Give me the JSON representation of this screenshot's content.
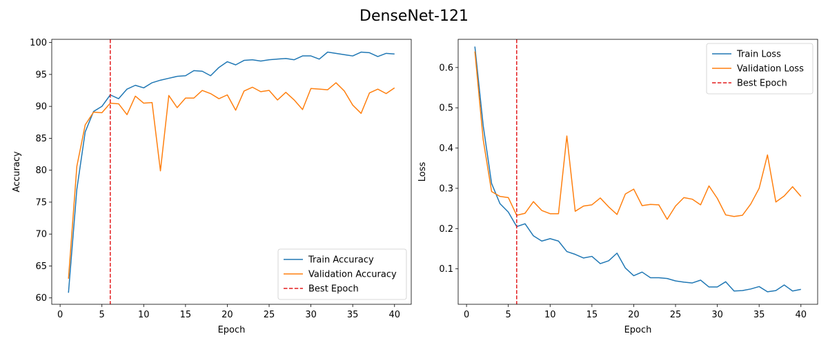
{
  "figure": {
    "title": "DenseNet-121"
  },
  "chart_data": [
    {
      "type": "line",
      "xlabel": "Epoch",
      "ylabel": "Accuracy",
      "xlim": [
        -1,
        42
      ],
      "ylim": [
        59.0,
        100.5
      ],
      "xticks": [
        0,
        5,
        10,
        15,
        20,
        25,
        30,
        35,
        40
      ],
      "yticks": [
        60,
        65,
        70,
        75,
        80,
        85,
        90,
        95,
        100
      ],
      "grid": false,
      "legend_position": "bottom-right",
      "x": [
        1,
        2,
        3,
        4,
        5,
        6,
        7,
        8,
        9,
        10,
        11,
        12,
        13,
        14,
        15,
        16,
        17,
        18,
        19,
        20,
        21,
        22,
        23,
        24,
        25,
        26,
        27,
        28,
        29,
        30,
        31,
        32,
        33,
        34,
        35,
        36,
        37,
        38,
        39,
        40
      ],
      "series": [
        {
          "name": "Train Accuracy",
          "color": "#1f77b4",
          "values": [
            60.8,
            77.0,
            86.0,
            89.2,
            90.0,
            91.8,
            91.2,
            92.7,
            93.3,
            92.9,
            93.7,
            94.1,
            94.4,
            94.7,
            94.8,
            95.6,
            95.5,
            94.8,
            96.1,
            97.0,
            96.5,
            97.2,
            97.3,
            97.1,
            97.3,
            97.4,
            97.5,
            97.3,
            97.9,
            97.9,
            97.4,
            98.5,
            98.3,
            98.1,
            97.9,
            98.5,
            98.4,
            97.8,
            98.3,
            98.2
          ]
        },
        {
          "name": "Validation Accuracy",
          "color": "#ff7f0e",
          "values": [
            63.0,
            80.6,
            87.1,
            89.1,
            89.0,
            90.5,
            90.4,
            88.7,
            91.6,
            90.5,
            90.6,
            79.9,
            91.7,
            89.8,
            91.3,
            91.3,
            92.5,
            92.0,
            91.2,
            91.8,
            89.4,
            92.4,
            93.0,
            92.3,
            92.5,
            91.0,
            92.2,
            91.0,
            89.5,
            92.8,
            92.7,
            92.6,
            93.7,
            92.4,
            90.2,
            88.9,
            92.1,
            92.7,
            92.0,
            92.9
          ]
        }
      ],
      "vlines": [
        {
          "name": "Best Epoch",
          "x": 6,
          "color": "#e31a1c",
          "style": "dashed"
        }
      ]
    },
    {
      "type": "line",
      "xlabel": "Epoch",
      "ylabel": "Loss",
      "xlim": [
        -1,
        42
      ],
      "ylim": [
        0.012,
        0.67
      ],
      "xticks": [
        0,
        5,
        10,
        15,
        20,
        25,
        30,
        35,
        40
      ],
      "yticks": [
        0.1,
        0.2,
        0.3,
        0.4,
        0.5,
        0.6
      ],
      "grid": false,
      "legend_position": "top-right",
      "x": [
        1,
        2,
        3,
        4,
        5,
        6,
        7,
        8,
        9,
        10,
        11,
        12,
        13,
        14,
        15,
        16,
        17,
        18,
        19,
        20,
        21,
        22,
        23,
        24,
        25,
        26,
        27,
        28,
        29,
        30,
        31,
        32,
        33,
        34,
        35,
        36,
        37,
        38,
        39,
        40
      ],
      "series": [
        {
          "name": "Train Loss",
          "color": "#1f77b4",
          "values": [
            0.652,
            0.455,
            0.312,
            0.262,
            0.241,
            0.205,
            0.212,
            0.182,
            0.169,
            0.175,
            0.169,
            0.143,
            0.136,
            0.127,
            0.131,
            0.113,
            0.12,
            0.139,
            0.102,
            0.083,
            0.092,
            0.078,
            0.078,
            0.076,
            0.07,
            0.067,
            0.065,
            0.072,
            0.055,
            0.055,
            0.068,
            0.045,
            0.046,
            0.05,
            0.056,
            0.043,
            0.046,
            0.06,
            0.045,
            0.049
          ]
        },
        {
          "name": "Validation Loss",
          "color": "#ff7f0e",
          "values": [
            0.64,
            0.42,
            0.292,
            0.28,
            0.277,
            0.233,
            0.238,
            0.267,
            0.245,
            0.237,
            0.237,
            0.43,
            0.243,
            0.256,
            0.259,
            0.276,
            0.254,
            0.235,
            0.286,
            0.298,
            0.257,
            0.26,
            0.259,
            0.223,
            0.256,
            0.277,
            0.273,
            0.259,
            0.306,
            0.275,
            0.234,
            0.23,
            0.233,
            0.261,
            0.3,
            0.383,
            0.266,
            0.281,
            0.304,
            0.28
          ]
        }
      ],
      "vlines": [
        {
          "name": "Best Epoch",
          "x": 6,
          "color": "#e31a1c",
          "style": "dashed"
        }
      ]
    }
  ]
}
